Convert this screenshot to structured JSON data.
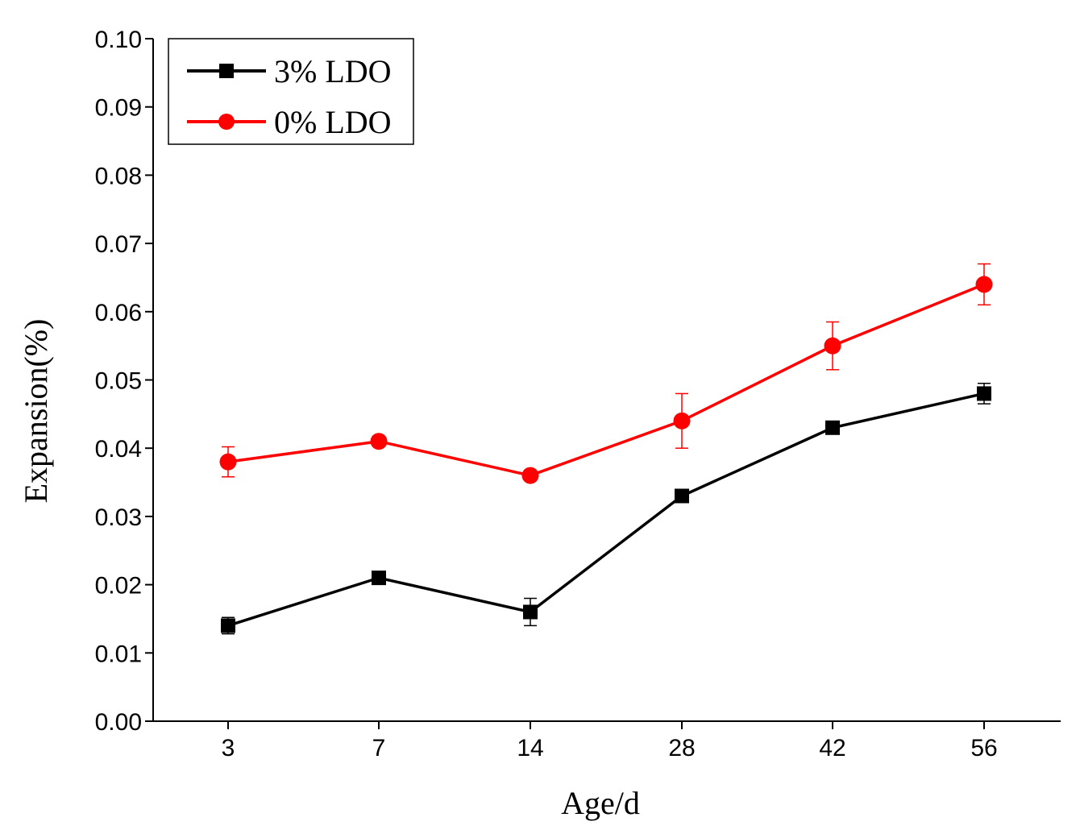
{
  "chart_data": {
    "type": "line",
    "title": "",
    "xlabel": "Age/d",
    "ylabel": "Expansion(%)",
    "categories": [
      "3",
      "7",
      "14",
      "28",
      "42",
      "56"
    ],
    "ylim": [
      0.0,
      0.1
    ],
    "yticks": [
      "0.00",
      "0.01",
      "0.02",
      "0.03",
      "0.04",
      "0.05",
      "0.06",
      "0.07",
      "0.08",
      "0.09",
      "0.10"
    ],
    "grid": false,
    "legend_position": "top-left",
    "series": [
      {
        "name": "3% LDO",
        "color": "#000000",
        "marker": "square",
        "values": [
          0.014,
          0.021,
          0.016,
          0.033,
          0.043,
          0.048
        ],
        "errors": [
          0.0012,
          0.0005,
          0.002,
          0.0005,
          0.0005,
          0.0015
        ]
      },
      {
        "name": "0% LDO",
        "color": "#ff0000",
        "marker": "circle",
        "values": [
          0.038,
          0.041,
          0.036,
          0.044,
          0.055,
          0.064
        ],
        "errors": [
          0.0022,
          0.0005,
          0.0005,
          0.004,
          0.0035,
          0.003
        ]
      }
    ]
  }
}
